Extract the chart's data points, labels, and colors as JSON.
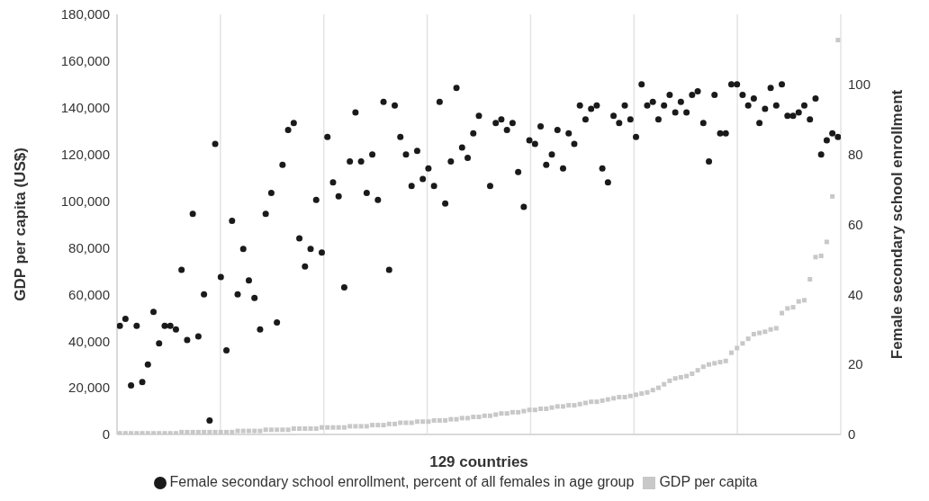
{
  "chart_data": {
    "type": "scatter",
    "xlabel": "129 countries",
    "ylabel": "GDP per capita (US$)",
    "y2label": "Female secondary school enrollment",
    "categories": [
      null,
      null,
      null,
      null,
      null,
      null,
      null,
      null,
      null,
      null,
      null,
      null,
      null,
      null,
      null,
      null,
      null,
      null,
      null,
      null,
      null,
      null,
      null,
      null,
      null,
      null,
      null,
      null,
      null,
      null,
      null,
      null,
      null,
      null,
      null,
      null,
      null,
      null,
      null,
      null,
      null,
      null,
      null,
      null,
      null,
      null,
      null,
      null,
      null,
      null,
      null,
      null,
      null,
      null,
      null,
      null,
      null,
      null,
      null,
      null,
      null,
      null,
      null,
      null,
      null,
      null,
      null,
      null,
      null,
      null,
      null,
      null,
      null,
      null,
      null,
      null,
      null,
      null,
      null,
      null,
      null,
      null,
      null,
      null,
      null,
      null,
      null,
      null,
      null,
      null,
      null,
      null,
      null,
      null,
      null,
      null,
      null,
      null,
      null,
      null,
      null,
      null,
      null,
      null,
      null,
      null,
      null,
      null,
      null,
      null,
      null,
      null,
      null,
      null,
      null,
      null,
      null,
      null,
      null,
      null,
      null,
      null,
      null,
      null,
      null,
      null,
      null,
      null,
      null
    ],
    "ylim": [
      0,
      180000
    ],
    "yticks": [
      0,
      {
        "value": 20000,
        "label": "20,000"
      },
      {
        "value": 40000,
        "label": "40,000"
      },
      {
        "value": 60000,
        "label": "60,000"
      },
      {
        "value": 80000,
        "label": "80,000"
      },
      {
        "value": 100000,
        "label": "100,000"
      },
      {
        "value": 120000,
        "label": "120,000"
      },
      {
        "value": 140000,
        "label": "140,000"
      },
      {
        "value": 160000,
        "label": "160,000"
      },
      {
        "value": 180000,
        "label": "180,000"
      }
    ],
    "y2lim": [
      0,
      120
    ],
    "y2ticks": [
      0,
      20,
      40,
      60,
      80,
      100
    ],
    "grid": true,
    "legend": "bottom",
    "series": [
      {
        "name": "GDP per capita",
        "color": "#c8c8c8",
        "marker": "square",
        "values": [
          500,
          500,
          500,
          500,
          500,
          500,
          500,
          500,
          500,
          500,
          500,
          1000,
          1000,
          1000,
          1000,
          1000,
          1000,
          1000,
          1000,
          1000,
          1000,
          1500,
          1500,
          1500,
          1500,
          1500,
          2000,
          2000,
          2000,
          2000,
          2000,
          2500,
          2500,
          2500,
          2500,
          2500,
          3000,
          3000,
          3000,
          3000,
          3000,
          3500,
          3500,
          3500,
          3500,
          4000,
          4000,
          4000,
          4500,
          4500,
          5000,
          5000,
          5000,
          5500,
          5500,
          5500,
          6000,
          6000,
          6000,
          6500,
          6500,
          7000,
          7000,
          7500,
          7500,
          8000,
          8000,
          8500,
          9000,
          9000,
          9500,
          9500,
          10000,
          10500,
          10500,
          11000,
          11000,
          11500,
          12000,
          12000,
          12500,
          12500,
          13000,
          13500,
          14000,
          14000,
          14500,
          15000,
          15500,
          16000,
          16000,
          16500,
          17000,
          17500,
          18000,
          19000,
          20000,
          21500,
          23000,
          24000,
          24500,
          25000,
          26000,
          27500,
          29000,
          30000,
          30500,
          31000,
          31500,
          35000,
          37000,
          39000,
          41000,
          43000,
          43500,
          44000,
          45000,
          45500,
          52000,
          54000,
          54500,
          57000,
          57500,
          66500,
          76000,
          76500,
          82500,
          102000,
          169000
        ]
      },
      {
        "name": "Female secondary school enrollment, percent of all females in age group",
        "color": "#1a1a1a",
        "marker": "circle",
        "axis": "y2",
        "values": [
          31,
          33,
          14,
          31,
          15,
          20,
          35,
          26,
          31,
          31,
          30,
          47,
          27,
          63,
          28,
          40,
          4,
          83,
          45,
          24,
          61,
          40,
          53,
          44,
          39,
          30,
          63,
          69,
          32,
          77,
          87,
          89,
          56,
          48,
          53,
          67,
          52,
          85,
          72,
          68,
          42,
          78,
          92,
          78,
          69,
          80,
          67,
          95,
          47,
          94,
          85,
          80,
          71,
          81,
          73,
          76,
          71,
          95,
          66,
          78,
          99,
          82,
          79,
          86,
          91,
          null,
          71,
          89,
          90,
          87,
          89,
          75,
          65,
          84,
          83,
          88,
          77,
          80,
          87,
          76,
          86,
          83,
          94,
          90,
          93,
          94,
          76,
          72,
          91,
          89,
          94,
          90,
          85,
          100,
          94,
          95,
          90,
          94,
          97,
          92,
          95,
          92,
          97,
          98,
          89,
          78,
          97,
          86,
          86,
          100,
          100,
          97,
          94,
          96,
          89,
          93,
          99,
          94,
          100,
          91,
          91,
          92,
          94,
          90,
          96,
          80,
          84,
          86,
          85
        ]
      }
    ]
  }
}
